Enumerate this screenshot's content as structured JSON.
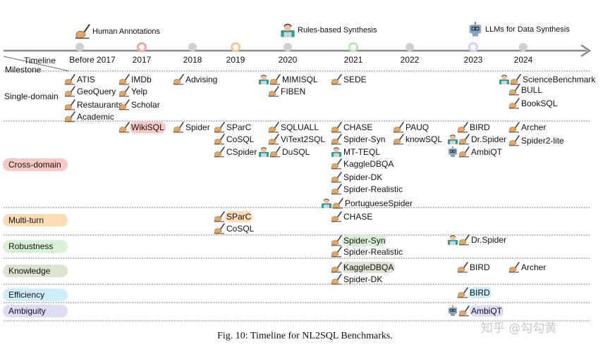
{
  "legend": [
    {
      "icon": "writing-hand-icon",
      "label": "Human Annotations"
    },
    {
      "icon": "technologist-icon",
      "label": "Rules-based Synthesis"
    },
    {
      "icon": "robot-icon",
      "label": "LLMs for Data Synthesis"
    }
  ],
  "timeline_label": "Timeline",
  "milestone_label": "Milestone",
  "years": [
    {
      "label": "Before 2017",
      "marker": "grey"
    },
    {
      "label": "2017",
      "marker": "ring-red"
    },
    {
      "label": "2018",
      "marker": "grey"
    },
    {
      "label": "2019",
      "marker": "ring-orange"
    },
    {
      "label": "2020",
      "marker": "grey"
    },
    {
      "label": "2021",
      "marker": "ring-green"
    },
    {
      "label": "2022",
      "marker": "grey"
    },
    {
      "label": "2023",
      "marker": "ring-blue"
    },
    {
      "label": "2024",
      "marker": "grey"
    }
  ],
  "categories": [
    {
      "label": "Single-domain",
      "pill_color": ""
    },
    {
      "label": "Cross-domain",
      "pill_color": "#f8c8c4"
    },
    {
      "label": "Multi-turn",
      "pill_color": "#fbdcb4"
    },
    {
      "label": "Robustness",
      "pill_color": "#d8f0d6"
    },
    {
      "label": "Knowledge",
      "pill_color": "#dde3d2"
    },
    {
      "label": "Efficiency",
      "pill_color": "#cdeefa"
    },
    {
      "label": "Ambiguity",
      "pill_color": "#dcdcf5"
    }
  ],
  "items": [
    {
      "text": "ATIS",
      "icons": [
        "writing-hand-icon"
      ],
      "highlight": ""
    },
    {
      "text": "GeoQuery",
      "icons": [
        "writing-hand-icon"
      ],
      "highlight": ""
    },
    {
      "text": "Restaurants",
      "icons": [
        "writing-hand-icon"
      ],
      "highlight": ""
    },
    {
      "text": "Academic",
      "icons": [
        "writing-hand-icon"
      ],
      "highlight": ""
    },
    {
      "text": "IMDb",
      "icons": [
        "writing-hand-icon"
      ],
      "highlight": ""
    },
    {
      "text": "Yelp",
      "icons": [
        "writing-hand-icon"
      ],
      "highlight": ""
    },
    {
      "text": "Scholar",
      "icons": [
        "writing-hand-icon"
      ],
      "highlight": ""
    },
    {
      "text": "Advising",
      "icons": [
        "writing-hand-icon"
      ],
      "highlight": ""
    },
    {
      "text": "MIMISQL",
      "icons": [
        "technologist-icon",
        "writing-hand-icon"
      ],
      "highlight": ""
    },
    {
      "text": "FIBEN",
      "icons": [
        "writing-hand-icon"
      ],
      "highlight": ""
    },
    {
      "text": "SEDE",
      "icons": [
        "writing-hand-icon"
      ],
      "highlight": ""
    },
    {
      "text": "ScienceBenchmark",
      "icons": [
        "technologist-icon",
        "writing-hand-icon"
      ],
      "highlight": ""
    },
    {
      "text": "BULL",
      "icons": [
        "writing-hand-icon"
      ],
      "highlight": ""
    },
    {
      "text": "BookSQL",
      "icons": [
        "writing-hand-icon"
      ],
      "highlight": ""
    },
    {
      "text": "WikiSQL",
      "icons": [
        "writing-hand-icon"
      ],
      "highlight": "#f8c8c4"
    },
    {
      "text": "Spider",
      "icons": [
        "writing-hand-icon"
      ],
      "highlight": ""
    },
    {
      "text": "SParC",
      "icons": [
        "writing-hand-icon"
      ],
      "highlight": ""
    },
    {
      "text": "CoSQL",
      "icons": [
        "writing-hand-icon"
      ],
      "highlight": ""
    },
    {
      "text": "CSpider",
      "icons": [
        "writing-hand-icon"
      ],
      "highlight": ""
    },
    {
      "text": "SQLUALL",
      "icons": [
        "writing-hand-icon"
      ],
      "highlight": ""
    },
    {
      "text": "ViText2SQL",
      "icons": [
        "writing-hand-icon"
      ],
      "highlight": ""
    },
    {
      "text": "DuSQL",
      "icons": [
        "technologist-icon",
        "writing-hand-icon"
      ],
      "highlight": ""
    },
    {
      "text": "CHASE",
      "icons": [
        "writing-hand-icon"
      ],
      "highlight": ""
    },
    {
      "text": "Spider-Syn",
      "icons": [
        "writing-hand-icon"
      ],
      "highlight": ""
    },
    {
      "text": "MT-TEQL",
      "icons": [
        "technologist-icon"
      ],
      "highlight": ""
    },
    {
      "text": "KaggleDBQA",
      "icons": [
        "writing-hand-icon"
      ],
      "highlight": ""
    },
    {
      "text": "Spider-DK",
      "icons": [
        "writing-hand-icon"
      ],
      "highlight": ""
    },
    {
      "text": "Spider-Realistic",
      "icons": [
        "writing-hand-icon"
      ],
      "highlight": ""
    },
    {
      "text": "PortugueseSpider",
      "icons": [
        "technologist-icon",
        "writing-hand-icon"
      ],
      "highlight": ""
    },
    {
      "text": "PAUQ",
      "icons": [
        "writing-hand-icon"
      ],
      "highlight": ""
    },
    {
      "text": "knowSQL",
      "icons": [
        "writing-hand-icon"
      ],
      "highlight": ""
    },
    {
      "text": "BIRD",
      "icons": [
        "writing-hand-icon"
      ],
      "highlight": ""
    },
    {
      "text": "Dr.Spider",
      "icons": [
        "technologist-icon",
        "writing-hand-icon"
      ],
      "highlight": ""
    },
    {
      "text": "AmbiQT",
      "icons": [
        "robot-icon",
        "writing-hand-icon"
      ],
      "highlight": ""
    },
    {
      "text": "Archer",
      "icons": [
        "writing-hand-icon"
      ],
      "highlight": ""
    },
    {
      "text": "Spider2-lite",
      "icons": [
        "writing-hand-icon"
      ],
      "highlight": ""
    },
    {
      "text": "SParC",
      "icons": [
        "writing-hand-icon"
      ],
      "highlight": "#fbdcb4"
    },
    {
      "text": "CoSQL",
      "icons": [
        "writing-hand-icon"
      ],
      "highlight": ""
    },
    {
      "text": "CHASE",
      "icons": [
        "writing-hand-icon"
      ],
      "highlight": ""
    },
    {
      "text": "Spider-Syn",
      "icons": [
        "writing-hand-icon"
      ],
      "highlight": "#d8f0d6"
    },
    {
      "text": "Spider-Realistic",
      "icons": [
        "writing-hand-icon"
      ],
      "highlight": ""
    },
    {
      "text": "Dr.Spider",
      "icons": [
        "technologist-icon",
        "writing-hand-icon"
      ],
      "highlight": ""
    },
    {
      "text": "KaggleDBQA",
      "icons": [
        "writing-hand-icon"
      ],
      "highlight": "#dde3d2"
    },
    {
      "text": "Spider-DK",
      "icons": [
        "writing-hand-icon"
      ],
      "highlight": ""
    },
    {
      "text": "BIRD",
      "icons": [
        "writing-hand-icon"
      ],
      "highlight": ""
    },
    {
      "text": "Archer",
      "icons": [
        "writing-hand-icon"
      ],
      "highlight": ""
    },
    {
      "text": "BIRD",
      "icons": [
        "writing-hand-icon"
      ],
      "highlight": "#cdeefa"
    },
    {
      "text": "AmbiQT",
      "icons": [
        "robot-icon",
        "writing-hand-icon"
      ],
      "highlight": "#dcdcf5"
    }
  ],
  "caption": "Fig. 10: Timeline for NL2SQL Benchmarks.",
  "watermark": "知乎 @勾勾黄"
}
